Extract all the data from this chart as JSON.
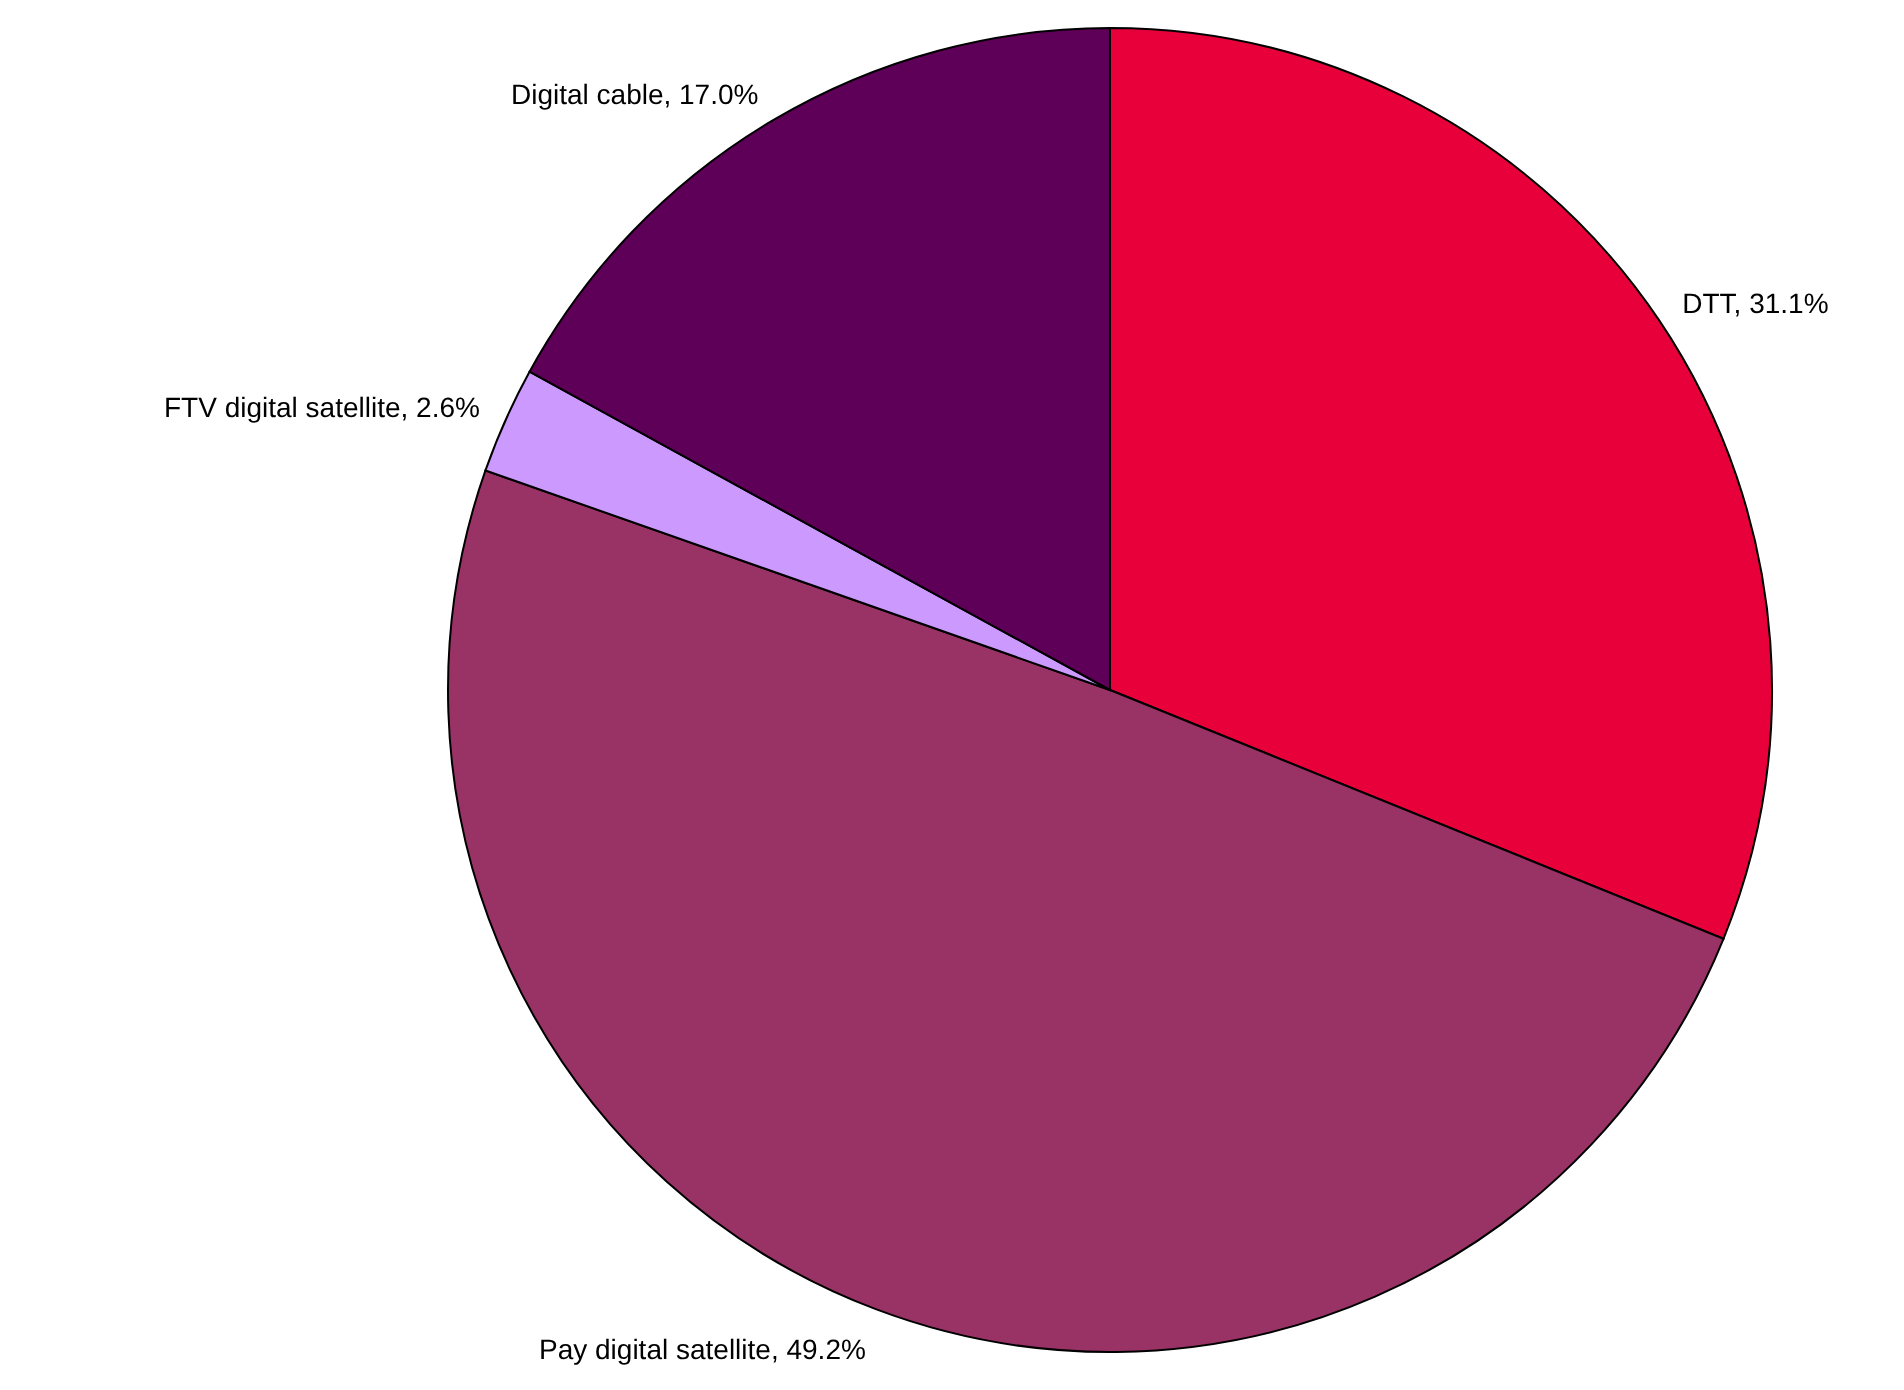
{
  "chart_data": {
    "type": "pie",
    "categories": [
      "DTT",
      "Pay digital satellite",
      "FTV digital satellite",
      "Digital cable"
    ],
    "values": [
      31.1,
      49.2,
      2.6,
      17.0
    ],
    "colors": [
      "#e8003a",
      "#993366",
      "#cc99ff",
      "#5e0058"
    ],
    "value_labels": [
      "31.1%",
      "49.2%",
      "2.6%",
      "17.0%"
    ]
  }
}
